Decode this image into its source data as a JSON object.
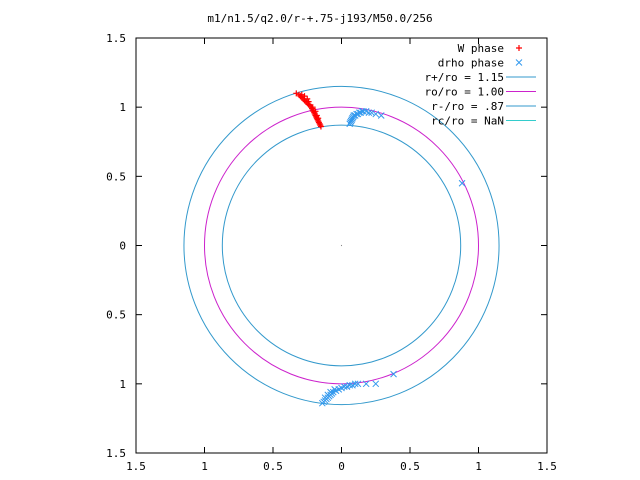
{
  "chart_data": {
    "type": "scatter",
    "title": "m1/n1.5/q2.0/r-+.75-j193/M50.0/256",
    "xlabel": "",
    "ylabel": "",
    "xlim": [
      -1.5,
      1.5
    ],
    "ylim": [
      -1.5,
      1.5
    ],
    "x_ticks": [
      {
        "value": -1.5,
        "label": "1.5"
      },
      {
        "value": -1.0,
        "label": "1"
      },
      {
        "value": -0.5,
        "label": "0.5"
      },
      {
        "value": 0.0,
        "label": "0"
      },
      {
        "value": 0.5,
        "label": "0.5"
      },
      {
        "value": 1.0,
        "label": "1"
      },
      {
        "value": 1.5,
        "label": "1.5"
      }
    ],
    "y_ticks": [
      {
        "value": 1.5,
        "label": "1.5"
      },
      {
        "value": 1.0,
        "label": "1"
      },
      {
        "value": 0.5,
        "label": "0.5"
      },
      {
        "value": 0.0,
        "label": "0"
      },
      {
        "value": -0.5,
        "label": "0.5"
      },
      {
        "value": -1.0,
        "label": "1"
      },
      {
        "value": -1.5,
        "label": "1.5"
      }
    ],
    "grid": false,
    "legend_position": "top-right",
    "series": [
      {
        "name": "W phase",
        "kind": "points",
        "marker": "plus",
        "color": "#ff0000",
        "points": [
          [
            -0.33,
            1.1
          ],
          [
            -0.31,
            1.09
          ],
          [
            -0.3,
            1.08
          ],
          [
            -0.29,
            1.07
          ],
          [
            -0.28,
            1.06
          ],
          [
            -0.27,
            1.05
          ],
          [
            -0.26,
            1.04
          ],
          [
            -0.25,
            1.03
          ],
          [
            -0.24,
            1.02
          ],
          [
            -0.23,
            1.01
          ],
          [
            -0.22,
            1.0
          ],
          [
            -0.215,
            0.99
          ],
          [
            -0.21,
            0.98
          ],
          [
            -0.205,
            0.97
          ],
          [
            -0.2,
            0.96
          ],
          [
            -0.195,
            0.95
          ],
          [
            -0.19,
            0.94
          ],
          [
            -0.185,
            0.93
          ],
          [
            -0.18,
            0.92
          ],
          [
            -0.175,
            0.91
          ],
          [
            -0.17,
            0.9
          ],
          [
            -0.165,
            0.89
          ],
          [
            -0.16,
            0.88
          ],
          [
            -0.155,
            0.87
          ],
          [
            -0.15,
            0.86
          ],
          [
            -0.25,
            1.06
          ],
          [
            -0.27,
            1.08
          ],
          [
            -0.29,
            1.09
          ],
          [
            -0.24,
            1.04
          ],
          [
            -0.21,
            1.0
          ],
          [
            -0.19,
            0.97
          ],
          [
            -0.18,
            0.94
          ],
          [
            -0.17,
            0.92
          ]
        ]
      },
      {
        "name": "drho phase",
        "kind": "points",
        "marker": "cross",
        "color": "#3399ee",
        "points": [
          [
            0.06,
            0.88
          ],
          [
            0.065,
            0.89
          ],
          [
            0.07,
            0.9
          ],
          [
            0.075,
            0.91
          ],
          [
            0.08,
            0.92
          ],
          [
            0.085,
            0.93
          ],
          [
            0.09,
            0.94
          ],
          [
            0.1,
            0.94
          ],
          [
            0.11,
            0.95
          ],
          [
            0.12,
            0.95
          ],
          [
            0.13,
            0.96
          ],
          [
            0.14,
            0.96
          ],
          [
            0.15,
            0.97
          ],
          [
            0.16,
            0.97
          ],
          [
            0.18,
            0.97
          ],
          [
            0.2,
            0.96
          ],
          [
            0.22,
            0.96
          ],
          [
            0.25,
            0.95
          ],
          [
            0.29,
            0.94
          ],
          [
            0.88,
            0.45
          ],
          [
            0.38,
            -0.93
          ],
          [
            0.25,
            -1.0
          ],
          [
            0.18,
            -1.0
          ],
          [
            0.12,
            -1.0
          ],
          [
            0.1,
            -1.0
          ],
          [
            0.08,
            -1.01
          ],
          [
            0.06,
            -1.01
          ],
          [
            0.04,
            -1.02
          ],
          [
            0.02,
            -1.02
          ],
          [
            0.0,
            -1.03
          ],
          [
            -0.02,
            -1.04
          ],
          [
            -0.04,
            -1.05
          ],
          [
            -0.06,
            -1.06
          ],
          [
            -0.07,
            -1.07
          ],
          [
            -0.08,
            -1.08
          ],
          [
            -0.09,
            -1.09
          ],
          [
            -0.1,
            -1.1
          ],
          [
            -0.11,
            -1.11
          ],
          [
            -0.12,
            -1.12
          ],
          [
            -0.13,
            -1.13
          ],
          [
            -0.14,
            -1.14
          ],
          [
            -0.1,
            -1.08
          ],
          [
            -0.08,
            -1.06
          ],
          [
            -0.05,
            -1.04
          ],
          [
            -0.12,
            -1.1
          ]
        ]
      },
      {
        "name": "r+/ro = 1.15",
        "kind": "circle",
        "r": 1.15,
        "color": "#3399cc"
      },
      {
        "name": "ro/ro = 1.00",
        "kind": "circle",
        "r": 1.0,
        "color": "#cc22cc"
      },
      {
        "name": "r-/ro = .87",
        "kind": "circle",
        "r": 0.87,
        "color": "#3399cc"
      },
      {
        "name": "rc/ro = NaN",
        "kind": "circle",
        "r": null,
        "color": "#33cccc"
      }
    ]
  }
}
